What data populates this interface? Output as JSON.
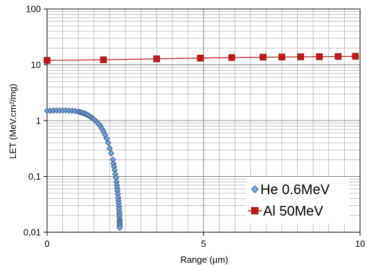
{
  "chart_data": {
    "type": "scatter",
    "title": "",
    "xlabel": "Range (µm)",
    "ylabel": "LET (MeV.cm²/mg)",
    "xlim": [
      0,
      10
    ],
    "ylim": [
      0.01,
      100
    ],
    "yscale": "log",
    "grid": true,
    "legend_position": "bottom-right",
    "x_ticks": [
      "0",
      "5",
      "10"
    ],
    "y_ticks": [
      "0,01",
      "0,1",
      "1",
      "10",
      "100"
    ],
    "colors": {
      "he_fill": "#7da3d6",
      "he_edge": "#2f4f7f",
      "al_fill": "#c0171c",
      "al_line": "#c0171c",
      "grid_major": "#808080",
      "grid_minor": "#b5b5b5"
    },
    "series": [
      {
        "name": "He 0.6MeV",
        "marker": "diamond",
        "line": false,
        "x": [
          0.0,
          0.1,
          0.2,
          0.3,
          0.4,
          0.5,
          0.6,
          0.7,
          0.8,
          0.9,
          1.0,
          1.05,
          1.1,
          1.15,
          1.2,
          1.25,
          1.3,
          1.35,
          1.4,
          1.45,
          1.5,
          1.55,
          1.6,
          1.65,
          1.7,
          1.75,
          1.8,
          1.85,
          1.9,
          1.95,
          2.0,
          2.05,
          2.1,
          2.12,
          2.14,
          2.16,
          2.18,
          2.2,
          2.22,
          2.23,
          2.24,
          2.25,
          2.26,
          2.27,
          2.28,
          2.29,
          2.3,
          2.3,
          2.31,
          2.31,
          2.31,
          2.32,
          2.32,
          2.32,
          2.32,
          2.32,
          2.32
        ],
        "y": [
          1.5,
          1.5,
          1.51,
          1.52,
          1.52,
          1.52,
          1.52,
          1.51,
          1.5,
          1.48,
          1.45,
          1.42,
          1.4,
          1.37,
          1.34,
          1.3,
          1.26,
          1.21,
          1.16,
          1.11,
          1.05,
          0.99,
          0.93,
          0.87,
          0.8,
          0.72,
          0.64,
          0.56,
          0.48,
          0.4,
          0.32,
          0.26,
          0.2,
          0.17,
          0.15,
          0.13,
          0.11,
          0.095,
          0.08,
          0.07,
          0.062,
          0.055,
          0.048,
          0.042,
          0.037,
          0.033,
          0.029,
          0.026,
          0.023,
          0.021,
          0.019,
          0.017,
          0.016,
          0.015,
          0.014,
          0.013,
          0.012
        ]
      },
      {
        "name": "Al 50MeV",
        "marker": "square",
        "line": true,
        "x": [
          0,
          1.8,
          3.5,
          4.9,
          5.9,
          6.9,
          7.5,
          8.1,
          8.7,
          9.3,
          9.85
        ],
        "y": [
          12,
          12.3,
          12.8,
          13.2,
          13.5,
          13.7,
          13.8,
          13.9,
          14.0,
          14.1,
          14.2
        ]
      }
    ]
  }
}
